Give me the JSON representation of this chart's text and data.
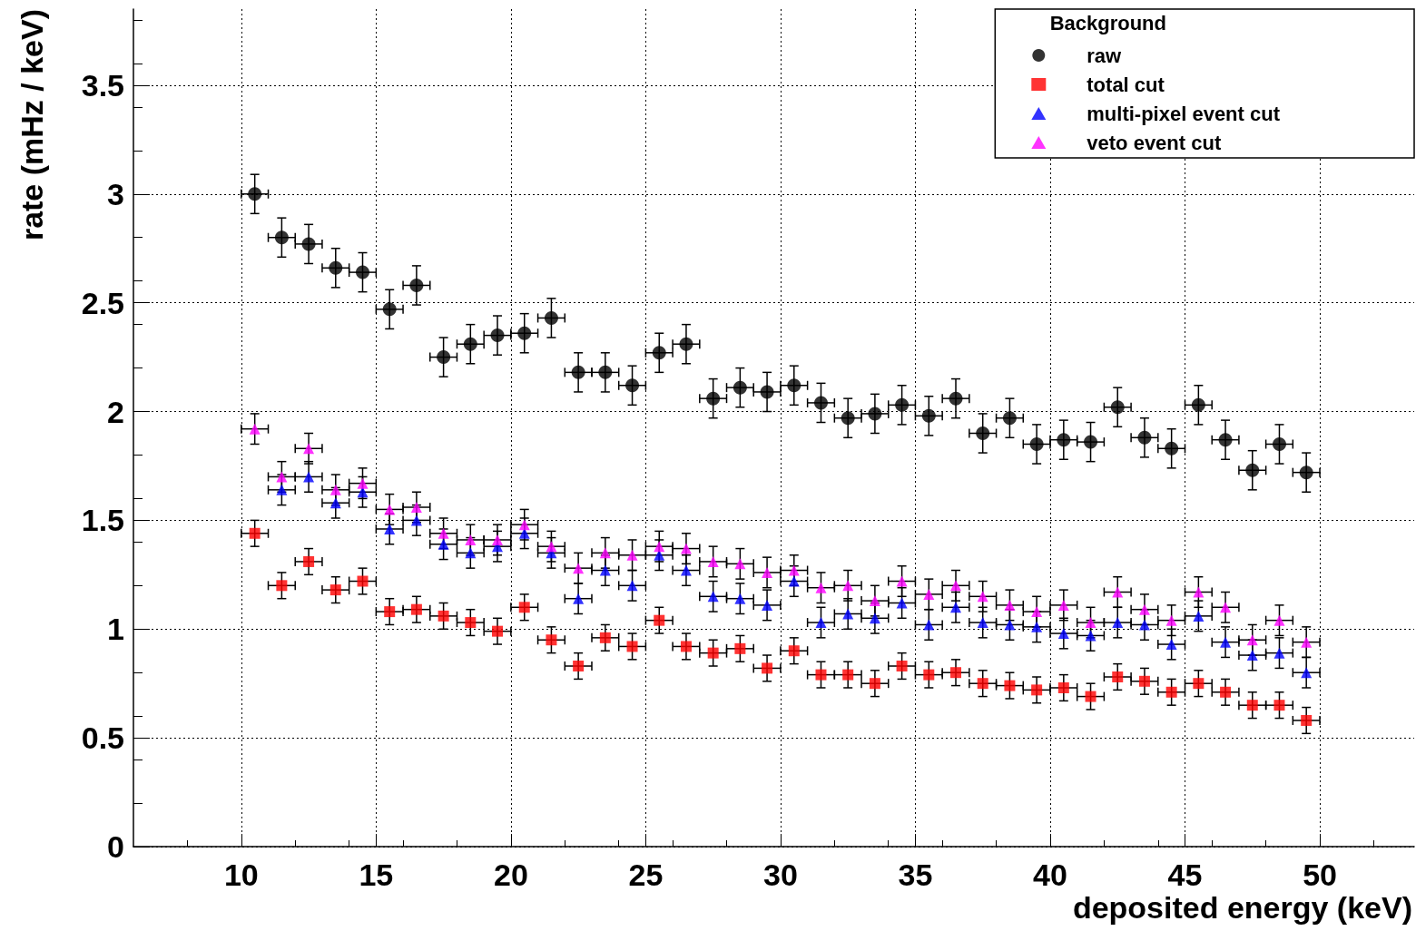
{
  "chart_data": {
    "type": "scatter",
    "xlabel": "deposited energy (keV)",
    "ylabel": "rate (mHz / keV)",
    "legend_title": "Background",
    "legend": "top right",
    "grid": true,
    "xlim": [
      6,
      53.5
    ],
    "ylim": [
      0,
      3.85
    ],
    "xticks": [
      10,
      15,
      20,
      25,
      30,
      35,
      40,
      45,
      50
    ],
    "yticks": [
      0,
      0.5,
      1,
      1.5,
      2,
      2.5,
      3,
      3.5
    ],
    "x": [
      10.5,
      11.5,
      12.5,
      13.5,
      14.5,
      15.5,
      16.5,
      17.5,
      18.5,
      19.5,
      20.5,
      21.5,
      22.5,
      23.5,
      24.5,
      25.5,
      26.5,
      27.5,
      28.5,
      29.5,
      30.5,
      31.5,
      32.5,
      33.5,
      34.5,
      35.5,
      36.5,
      37.5,
      38.5,
      39.5,
      40.5,
      41.5,
      42.5,
      43.5,
      44.5,
      45.5,
      46.5,
      47.5,
      48.5,
      49.5
    ],
    "series": [
      {
        "name": "raw",
        "color": "#000000",
        "marker": "circle",
        "values": [
          3.0,
          2.8,
          2.77,
          2.66,
          2.64,
          2.47,
          2.58,
          2.25,
          2.31,
          2.35,
          2.36,
          2.43,
          2.18,
          2.18,
          2.12,
          2.27,
          2.31,
          2.06,
          2.11,
          2.09,
          2.12,
          2.04,
          1.97,
          1.99,
          2.03,
          1.98,
          2.06,
          1.9,
          1.97,
          1.85,
          1.87,
          1.86,
          2.02,
          1.88,
          1.83,
          2.03,
          1.87,
          1.73,
          1.85,
          1.72
        ],
        "errors": [
          0.09,
          0.09,
          0.09,
          0.09,
          0.09,
          0.09,
          0.09,
          0.09,
          0.09,
          0.09,
          0.09,
          0.09,
          0.09,
          0.09,
          0.09,
          0.09,
          0.09,
          0.09,
          0.09,
          0.09,
          0.09,
          0.09,
          0.09,
          0.09,
          0.09,
          0.09,
          0.09,
          0.09,
          0.09,
          0.09,
          0.09,
          0.09,
          0.09,
          0.09,
          0.09,
          0.09,
          0.09,
          0.09,
          0.09,
          0.09
        ],
        "xerrors": [
          0.5,
          0.5,
          0.5,
          0.5,
          0.5,
          0.5,
          0.5,
          0.5,
          0.5,
          0.5,
          0.5,
          0.5,
          0.5,
          0.5,
          0.5,
          0.5,
          0.5,
          0.5,
          0.5,
          0.5,
          0.5,
          0.5,
          0.5,
          0.5,
          0.5,
          0.5,
          0.5,
          0.5,
          0.5,
          0.5,
          0.5,
          0.5,
          0.5,
          0.5,
          0.5,
          0.5,
          0.5,
          0.5,
          0.5,
          0.5
        ]
      },
      {
        "name": "total cut",
        "color": "#ff0000",
        "marker": "square",
        "values": [
          1.44,
          1.2,
          1.31,
          1.18,
          1.22,
          1.08,
          1.09,
          1.06,
          1.03,
          0.99,
          1.1,
          0.95,
          0.83,
          0.96,
          0.92,
          1.04,
          0.92,
          0.89,
          0.91,
          0.82,
          0.9,
          0.79,
          0.79,
          0.75,
          0.83,
          0.79,
          0.8,
          0.75,
          0.74,
          0.72,
          0.73,
          0.69,
          0.78,
          0.76,
          0.71,
          0.75,
          0.71,
          0.65,
          0.65,
          0.58
        ],
        "errors": [
          0.06,
          0.06,
          0.06,
          0.06,
          0.06,
          0.06,
          0.06,
          0.06,
          0.06,
          0.06,
          0.06,
          0.06,
          0.06,
          0.06,
          0.06,
          0.06,
          0.06,
          0.06,
          0.06,
          0.06,
          0.06,
          0.06,
          0.06,
          0.06,
          0.06,
          0.06,
          0.06,
          0.06,
          0.06,
          0.06,
          0.06,
          0.06,
          0.06,
          0.06,
          0.06,
          0.06,
          0.06,
          0.06,
          0.06,
          0.06
        ],
        "xerrors": [
          0.5,
          0.5,
          0.5,
          0.5,
          0.5,
          0.5,
          0.5,
          0.5,
          0.5,
          0.5,
          0.5,
          0.5,
          0.5,
          0.5,
          0.5,
          0.5,
          0.5,
          0.5,
          0.5,
          0.5,
          0.5,
          0.5,
          0.5,
          0.5,
          0.5,
          0.5,
          0.5,
          0.5,
          0.5,
          0.5,
          0.5,
          0.5,
          0.5,
          0.5,
          0.5,
          0.5,
          0.5,
          0.5,
          0.5,
          0.5
        ]
      },
      {
        "name": "multi-pixel event cut",
        "color": "#0000ff",
        "marker": "triangle",
        "values": [
          null,
          1.64,
          1.7,
          1.58,
          1.63,
          1.46,
          1.5,
          1.39,
          1.35,
          1.38,
          1.44,
          1.35,
          1.14,
          1.27,
          1.2,
          1.34,
          1.27,
          1.15,
          1.14,
          1.11,
          1.22,
          1.03,
          1.07,
          1.05,
          1.12,
          1.02,
          1.1,
          1.03,
          1.02,
          1.01,
          0.98,
          0.97,
          1.03,
          1.02,
          0.93,
          1.06,
          0.94,
          0.88,
          0.89,
          0.8
        ],
        "errors": [
          null,
          0.07,
          0.07,
          0.07,
          0.07,
          0.07,
          0.07,
          0.07,
          0.07,
          0.07,
          0.07,
          0.07,
          0.07,
          0.07,
          0.07,
          0.07,
          0.07,
          0.07,
          0.07,
          0.07,
          0.07,
          0.07,
          0.07,
          0.07,
          0.07,
          0.07,
          0.07,
          0.07,
          0.07,
          0.07,
          0.07,
          0.07,
          0.07,
          0.07,
          0.07,
          0.07,
          0.07,
          0.07,
          0.07,
          0.07
        ],
        "xerrors": [
          null,
          0.5,
          0.5,
          0.5,
          0.5,
          0.5,
          0.5,
          0.5,
          0.5,
          0.5,
          0.5,
          0.5,
          0.5,
          0.5,
          0.5,
          0.5,
          0.5,
          0.5,
          0.5,
          0.5,
          0.5,
          0.5,
          0.5,
          0.5,
          0.5,
          0.5,
          0.5,
          0.5,
          0.5,
          0.5,
          0.5,
          0.5,
          0.5,
          0.5,
          0.5,
          0.5,
          0.5,
          0.5,
          0.5,
          0.5
        ]
      },
      {
        "name": "veto event cut",
        "color": "#ff00ff",
        "marker": "triangle",
        "values": [
          1.92,
          1.7,
          1.83,
          1.64,
          1.67,
          1.55,
          1.56,
          1.44,
          1.41,
          1.41,
          1.48,
          1.38,
          1.28,
          1.35,
          1.34,
          1.38,
          1.37,
          1.31,
          1.3,
          1.26,
          1.27,
          1.19,
          1.2,
          1.13,
          1.22,
          1.16,
          1.2,
          1.15,
          1.11,
          1.08,
          1.11,
          1.03,
          1.17,
          1.09,
          1.04,
          1.17,
          1.1,
          0.95,
          1.04,
          0.94
        ],
        "errors": [
          0.07,
          0.07,
          0.07,
          0.07,
          0.07,
          0.07,
          0.07,
          0.07,
          0.07,
          0.07,
          0.07,
          0.07,
          0.07,
          0.07,
          0.07,
          0.07,
          0.07,
          0.07,
          0.07,
          0.07,
          0.07,
          0.07,
          0.07,
          0.07,
          0.07,
          0.07,
          0.07,
          0.07,
          0.07,
          0.07,
          0.07,
          0.07,
          0.07,
          0.07,
          0.07,
          0.07,
          0.07,
          0.07,
          0.07,
          0.07
        ],
        "xerrors": [
          0.5,
          0.5,
          0.5,
          0.5,
          0.5,
          0.5,
          0.5,
          0.5,
          0.5,
          0.5,
          0.5,
          0.5,
          0.5,
          0.5,
          0.5,
          0.5,
          0.5,
          0.5,
          0.5,
          0.5,
          0.5,
          0.5,
          0.5,
          0.5,
          0.5,
          0.5,
          0.5,
          0.5,
          0.5,
          0.5,
          0.5,
          0.5,
          0.5,
          0.5,
          0.5,
          0.5,
          0.5,
          0.5,
          0.5,
          0.5
        ]
      }
    ]
  }
}
